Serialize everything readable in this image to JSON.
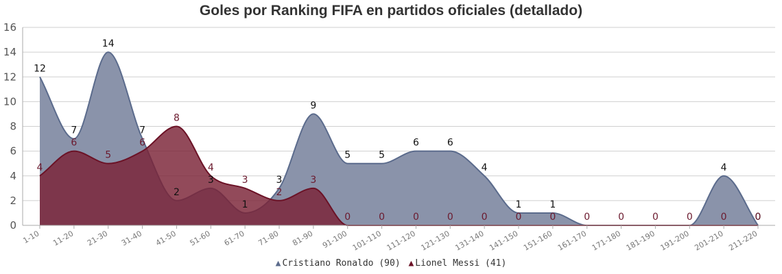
{
  "chart_data": {
    "type": "area",
    "title": "Goles por Ranking FIFA en partidos oficiales (detallado)",
    "categories": [
      "1-10",
      "11-20",
      "21-30",
      "31-40",
      "41-50",
      "51-60",
      "61-70",
      "71-80",
      "81-90",
      "91-100",
      "101-110",
      "111-120",
      "121-130",
      "131-140",
      "141-150",
      "151-160",
      "161-170",
      "171-180",
      "181-190",
      "191-200",
      "201-210",
      "211-220"
    ],
    "series": [
      {
        "name": "Cristiano Ronaldo (90)",
        "color": "#5b6b8c",
        "fill": "#8a93aa",
        "label_color": "#111111",
        "values": [
          12,
          7,
          14,
          7,
          2,
          3,
          1,
          3,
          9,
          5,
          5,
          6,
          6,
          4,
          1,
          1,
          0,
          0,
          0,
          0,
          4,
          0
        ],
        "labels": [
          "12",
          "7",
          "14",
          "7",
          "2",
          "3",
          "1",
          "3",
          "9",
          "5",
          "5",
          "6",
          "6",
          "4",
          "1",
          "1",
          "",
          "",
          "",
          "",
          "4",
          "0"
        ]
      },
      {
        "name": "Lionel Messi (41)",
        "color": "#6b1226",
        "fill": "#7a2236",
        "label_color": "#6b1a2e",
        "values": [
          4,
          6,
          5,
          6,
          8,
          4,
          3,
          2,
          3,
          0,
          0,
          0,
          0,
          0,
          0,
          0,
          0,
          0,
          0,
          0,
          0,
          0
        ],
        "labels": [
          "4",
          "6",
          "5",
          "6",
          "8",
          "4",
          "3",
          "2",
          "3",
          "0",
          "0",
          "0",
          "0",
          "0",
          "0",
          "0",
          "0",
          "0",
          "0",
          "0",
          "0",
          "0"
        ]
      }
    ],
    "ylim": [
      0,
      16
    ],
    "yticks": [
      0,
      2,
      4,
      6,
      8,
      10,
      12,
      14,
      16
    ],
    "grid": true,
    "legend": "bottom-center"
  }
}
